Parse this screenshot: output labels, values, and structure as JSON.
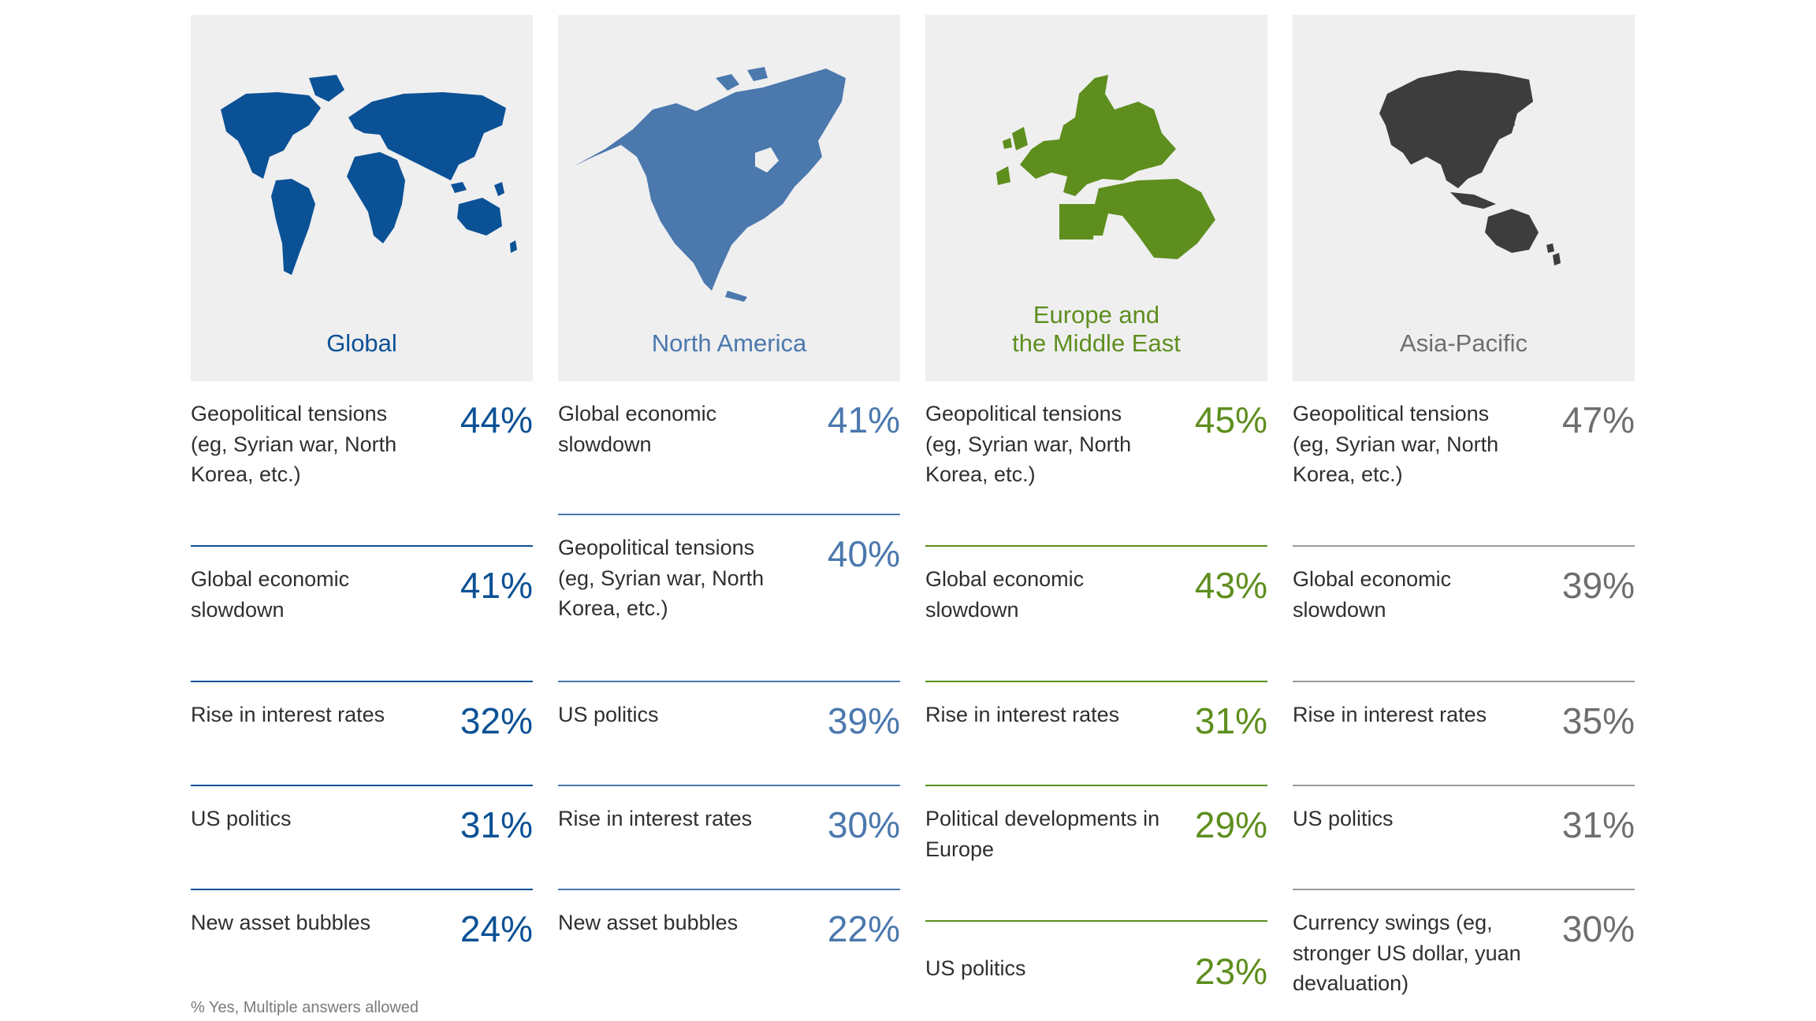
{
  "footnote": "% Yes, Multiple answers allowed",
  "chart_data": {
    "type": "table",
    "regions": [
      {
        "name": "Global",
        "color": "#0b5196",
        "map_icon": "world-map-icon",
        "items": [
          {
            "label": "Geopolitical tensions (eg, Syrian war, North Korea, etc.)",
            "pct_text": "44%",
            "value": 44
          },
          {
            "label": "Global economic slowdown",
            "pct_text": "41%",
            "value": 41
          },
          {
            "label": "Rise in interest rates",
            "pct_text": "32%",
            "value": 32
          },
          {
            "label": "US politics",
            "pct_text": "31%",
            "value": 31
          },
          {
            "label": "New asset bubbles",
            "pct_text": "24%",
            "value": 24
          }
        ]
      },
      {
        "name": "North America",
        "color": "#4b78ad",
        "map_icon": "north-america-map-icon",
        "items": [
          {
            "label": "Global economic slowdown",
            "pct_text": "41%",
            "value": 41
          },
          {
            "label": "Geopolitical tensions (eg, Syrian war, North Korea, etc.)",
            "pct_text": "40%",
            "value": 40
          },
          {
            "label": "US politics",
            "pct_text": "39%",
            "value": 39
          },
          {
            "label": "Rise in interest rates",
            "pct_text": "30%",
            "value": 30
          },
          {
            "label": "New asset bubbles",
            "pct_text": "22%",
            "value": 22
          }
        ]
      },
      {
        "name": "Europe and\nthe Middle East",
        "color": "#5e8e1e",
        "map_icon": "europe-middle-east-map-icon",
        "items": [
          {
            "label": "Geopolitical tensions (eg, Syrian war, North Korea, etc.)",
            "pct_text": "45%",
            "value": 45
          },
          {
            "label": "Global economic slowdown",
            "pct_text": "43%",
            "value": 43
          },
          {
            "label": "Rise in interest rates",
            "pct_text": "31%",
            "value": 31
          },
          {
            "label": "Political developments in Europe",
            "pct_text": "29%",
            "value": 29
          },
          {
            "label": "US politics",
            "pct_text": "23%",
            "value": 23
          }
        ]
      },
      {
        "name": "Asia-Pacific",
        "color": "#6e6e6e",
        "map_color": "#3d3d3d",
        "map_icon": "asia-pacific-map-icon",
        "items": [
          {
            "label": "Geopolitical tensions (eg, Syrian war, North Korea, etc.)",
            "pct_text": "47%",
            "value": 47
          },
          {
            "label": "Global economic slowdown",
            "pct_text": "39%",
            "value": 39
          },
          {
            "label": "Rise in interest rates",
            "pct_text": "35%",
            "value": 35
          },
          {
            "label": "US politics",
            "pct_text": "31%",
            "value": 31
          },
          {
            "label": "Currency swings (eg, stronger US dollar, yuan devaluation)",
            "pct_text": "30%",
            "value": 30
          }
        ]
      }
    ]
  }
}
